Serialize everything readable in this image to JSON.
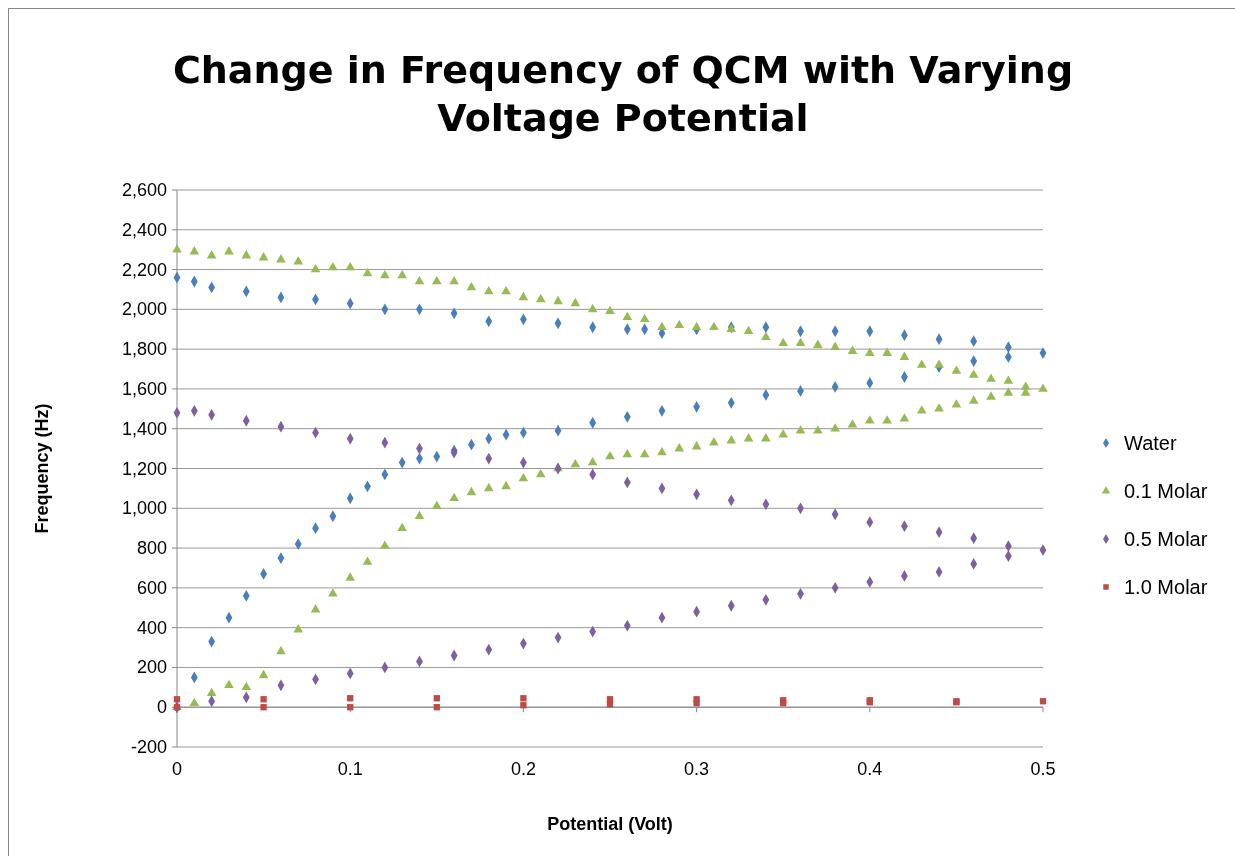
{
  "chart_data": {
    "type": "scatter",
    "title": "Change in Frequency of QCM with Varying Voltage Potential",
    "xlabel": "Potential (Volt)",
    "ylabel": "Frequency (Hz)",
    "xlim": [
      0,
      0.5
    ],
    "xticks": [
      0,
      0.1,
      0.2,
      0.3,
      0.4,
      0.5
    ],
    "ylim": [
      -200,
      2600
    ],
    "yticks": [
      {
        "value": -200,
        "label": "-200"
      },
      {
        "value": 0,
        "label": "0"
      },
      {
        "value": 200,
        "label": "200"
      },
      {
        "value": 400,
        "label": "400"
      },
      {
        "value": 600,
        "label": "600"
      },
      {
        "value": 800,
        "label": "800"
      },
      {
        "value": 1000,
        "label": "1,000"
      },
      {
        "value": 1200,
        "label": "1,200"
      },
      {
        "value": 1400,
        "label": "1,400"
      },
      {
        "value": 1600,
        "label": "1,600"
      },
      {
        "value": 1800,
        "label": "1,800"
      },
      {
        "value": 2000,
        "label": "2,000"
      },
      {
        "value": 2200,
        "label": "2,200"
      },
      {
        "value": 2400,
        "label": "2,400"
      },
      {
        "value": 2600,
        "label": "2,600"
      }
    ],
    "grid": "y",
    "legend": "right",
    "series": [
      {
        "name": "Water",
        "color": "#4a7ebb",
        "marker": "diamond",
        "x": [
          0,
          0.01,
          0.02,
          0.03,
          0.04,
          0.05,
          0.06,
          0.07,
          0.08,
          0.09,
          0.1,
          0.11,
          0.12,
          0.13,
          0.14,
          0.15,
          0.16,
          0.17,
          0.18,
          0.19,
          0.2,
          0.22,
          0.24,
          0.26,
          0.28,
          0.3,
          0.32,
          0.34,
          0.36,
          0.38,
          0.4,
          0.42,
          0.44,
          0.46,
          0.48,
          0.5,
          0.48,
          0.46,
          0.44,
          0.42,
          0.4,
          0.38,
          0.36,
          0.34,
          0.32,
          0.3,
          0.28,
          0.27,
          0.26,
          0.24,
          0.22,
          0.2,
          0.18,
          0.16,
          0.14,
          0.12,
          0.1,
          0.08,
          0.06,
          0.04,
          0.02,
          0.01,
          0
        ],
        "values": [
          0,
          150,
          330,
          450,
          560,
          670,
          750,
          820,
          900,
          960,
          1050,
          1110,
          1170,
          1230,
          1250,
          1260,
          1290,
          1320,
          1350,
          1370,
          1380,
          1390,
          1430,
          1460,
          1490,
          1510,
          1530,
          1570,
          1590,
          1610,
          1630,
          1660,
          1710,
          1740,
          1760,
          1780,
          1810,
          1840,
          1850,
          1870,
          1890,
          1890,
          1890,
          1910,
          1910,
          1900,
          1880,
          1900,
          1900,
          1910,
          1930,
          1950,
          1940,
          1980,
          2000,
          2000,
          2030,
          2050,
          2060,
          2090,
          2110,
          2140,
          2160
        ]
      },
      {
        "name": "0.1 Molar",
        "color": "#98b954",
        "marker": "triangle",
        "x": [
          0,
          0.01,
          0.02,
          0.03,
          0.04,
          0.05,
          0.06,
          0.07,
          0.08,
          0.09,
          0.1,
          0.11,
          0.12,
          0.13,
          0.14,
          0.15,
          0.16,
          0.17,
          0.18,
          0.19,
          0.2,
          0.21,
          0.22,
          0.23,
          0.24,
          0.25,
          0.26,
          0.27,
          0.28,
          0.29,
          0.3,
          0.31,
          0.32,
          0.33,
          0.34,
          0.35,
          0.36,
          0.37,
          0.38,
          0.39,
          0.4,
          0.41,
          0.42,
          0.43,
          0.44,
          0.45,
          0.46,
          0.47,
          0.48,
          0.49,
          0.5,
          0.49,
          0.48,
          0.47,
          0.46,
          0.45,
          0.44,
          0.43,
          0.42,
          0.41,
          0.4,
          0.39,
          0.38,
          0.37,
          0.36,
          0.35,
          0.34,
          0.33,
          0.32,
          0.31,
          0.3,
          0.29,
          0.28,
          0.27,
          0.26,
          0.25,
          0.24,
          0.23,
          0.22,
          0.21,
          0.2,
          0.19,
          0.18,
          0.17,
          0.16,
          0.15,
          0.14,
          0.13,
          0.12,
          0.11,
          0.1,
          0.09,
          0.08,
          0.07,
          0.06,
          0.05,
          0.04,
          0.03,
          0.02,
          0.01,
          0
        ],
        "values": [
          0,
          20,
          70,
          110,
          100,
          160,
          280,
          390,
          490,
          570,
          650,
          730,
          810,
          900,
          960,
          1010,
          1050,
          1080,
          1100,
          1110,
          1150,
          1170,
          1200,
          1220,
          1230,
          1260,
          1270,
          1270,
          1280,
          1300,
          1310,
          1330,
          1340,
          1350,
          1350,
          1370,
          1390,
          1390,
          1400,
          1420,
          1440,
          1440,
          1450,
          1490,
          1500,
          1520,
          1540,
          1560,
          1580,
          1580,
          1600,
          1610,
          1640,
          1650,
          1670,
          1690,
          1720,
          1720,
          1760,
          1780,
          1780,
          1790,
          1810,
          1820,
          1830,
          1830,
          1860,
          1890,
          1900,
          1910,
          1910,
          1920,
          1910,
          1950,
          1960,
          1990,
          2000,
          2030,
          2040,
          2050,
          2060,
          2090,
          2090,
          2110,
          2140,
          2140,
          2140,
          2170,
          2170,
          2180,
          2210,
          2210,
          2200,
          2240,
          2250,
          2260,
          2270,
          2290,
          2270,
          2290,
          2300
        ]
      },
      {
        "name": "0.5 Molar",
        "color": "#7d60a0",
        "marker": "diamond",
        "x": [
          0,
          0.02,
          0.04,
          0.06,
          0.08,
          0.1,
          0.12,
          0.14,
          0.16,
          0.18,
          0.2,
          0.22,
          0.24,
          0.26,
          0.28,
          0.3,
          0.32,
          0.34,
          0.36,
          0.38,
          0.4,
          0.42,
          0.44,
          0.46,
          0.48,
          0.5,
          0.48,
          0.46,
          0.44,
          0.42,
          0.4,
          0.38,
          0.36,
          0.34,
          0.32,
          0.3,
          0.28,
          0.26,
          0.24,
          0.22,
          0.2,
          0.18,
          0.16,
          0.14,
          0.12,
          0.1,
          0.08,
          0.06,
          0.04,
          0.02,
          0.01,
          0
        ],
        "values": [
          0,
          30,
          50,
          110,
          140,
          170,
          200,
          230,
          260,
          290,
          320,
          350,
          380,
          410,
          450,
          480,
          510,
          540,
          570,
          600,
          630,
          660,
          680,
          720,
          760,
          790,
          810,
          850,
          880,
          910,
          930,
          970,
          1000,
          1020,
          1040,
          1070,
          1100,
          1130,
          1170,
          1200,
          1230,
          1250,
          1280,
          1300,
          1330,
          1350,
          1380,
          1410,
          1440,
          1470,
          1490,
          1480
        ]
      },
      {
        "name": "1.0 Molar",
        "color": "#be4b48",
        "marker": "square",
        "x": [
          0,
          0.05,
          0.1,
          0.15,
          0.2,
          0.25,
          0.3,
          0.35,
          0.4,
          0.45,
          0.5,
          0.45,
          0.4,
          0.35,
          0.3,
          0.25,
          0.2,
          0.15,
          0.1,
          0.05,
          0
        ],
        "values": [
          0,
          0,
          0,
          0,
          10,
          15,
          20,
          20,
          25,
          25,
          30,
          30,
          35,
          35,
          40,
          40,
          45,
          45,
          45,
          40,
          40
        ]
      }
    ]
  }
}
